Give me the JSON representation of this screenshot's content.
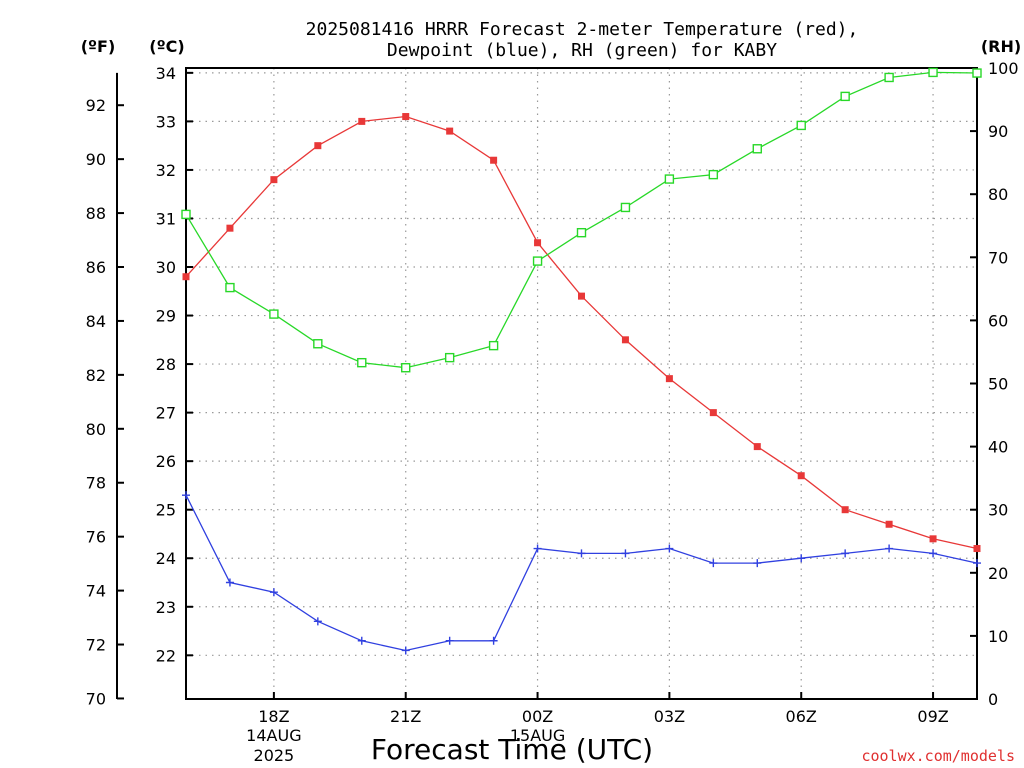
{
  "chart_data": {
    "type": "line",
    "title_line1": "2025081416 HRRR Forecast 2-meter Temperature (red),",
    "title_line2": "Dewpoint (blue), RH (green) for KABY",
    "xlabel": "Forecast Time (UTC)",
    "credit": "coolwx.com/models",
    "units": {
      "fahrenheit": "(ºF)",
      "celsius": "(ºC)",
      "rh": "(RH)"
    },
    "x_hours": [
      16,
      17,
      18,
      19,
      20,
      21,
      22,
      23,
      24,
      25,
      26,
      27,
      28,
      29,
      30,
      31,
      32,
      33,
      34
    ],
    "x_ticks": [
      {
        "hour": 18,
        "label": "18Z",
        "sub1": "14AUG",
        "sub2": "2025"
      },
      {
        "hour": 21,
        "label": "21Z",
        "sub1": "",
        "sub2": ""
      },
      {
        "hour": 24,
        "label": "00Z",
        "sub1": "15AUG",
        "sub2": ""
      },
      {
        "hour": 27,
        "label": "03Z",
        "sub1": "",
        "sub2": ""
      },
      {
        "hour": 30,
        "label": "06Z",
        "sub1": "",
        "sub2": ""
      },
      {
        "hour": 33,
        "label": "09Z",
        "sub1": "",
        "sub2": ""
      }
    ],
    "celsius_range": [
      21.1,
      34.1
    ],
    "celsius_ticks": [
      "22",
      "23",
      "24",
      "25",
      "26",
      "27",
      "28",
      "29",
      "30",
      "31",
      "32",
      "33",
      "34"
    ],
    "fahrenheit_ticks": [
      "70",
      "72",
      "74",
      "76",
      "78",
      "80",
      "82",
      "84",
      "86",
      "88",
      "90",
      "92"
    ],
    "rh_range": [
      0,
      100
    ],
    "rh_ticks": [
      "0",
      "10",
      "20",
      "30",
      "40",
      "50",
      "60",
      "70",
      "80",
      "90",
      "100"
    ],
    "series": [
      {
        "name": "Temperature",
        "color": "#e83838",
        "marker": "filled-square",
        "axis": "celsius",
        "values": [
          29.8,
          30.8,
          31.8,
          32.5,
          33.0,
          33.1,
          32.8,
          32.2,
          30.5,
          29.4,
          28.5,
          27.7,
          27.0,
          26.3,
          25.7,
          25.0,
          24.7,
          24.4,
          24.2
        ]
      },
      {
        "name": "Dewpoint",
        "color": "#3040e0",
        "marker": "plus",
        "axis": "celsius",
        "values": [
          25.3,
          23.5,
          23.3,
          22.7,
          22.3,
          22.1,
          22.3,
          22.3,
          24.2,
          24.1,
          24.1,
          24.2,
          23.9,
          23.9,
          24.0,
          24.1,
          24.2,
          24.1,
          23.9
        ]
      },
      {
        "name": "RH",
        "color": "#28d828",
        "marker": "open-square",
        "axis": "rh",
        "values": [
          76.8,
          65.2,
          61.0,
          56.3,
          53.3,
          52.5,
          54.1,
          56.0,
          69.4,
          73.9,
          77.9,
          82.4,
          83.1,
          87.2,
          90.9,
          95.5,
          98.5,
          99.3,
          99.2
        ]
      }
    ]
  }
}
